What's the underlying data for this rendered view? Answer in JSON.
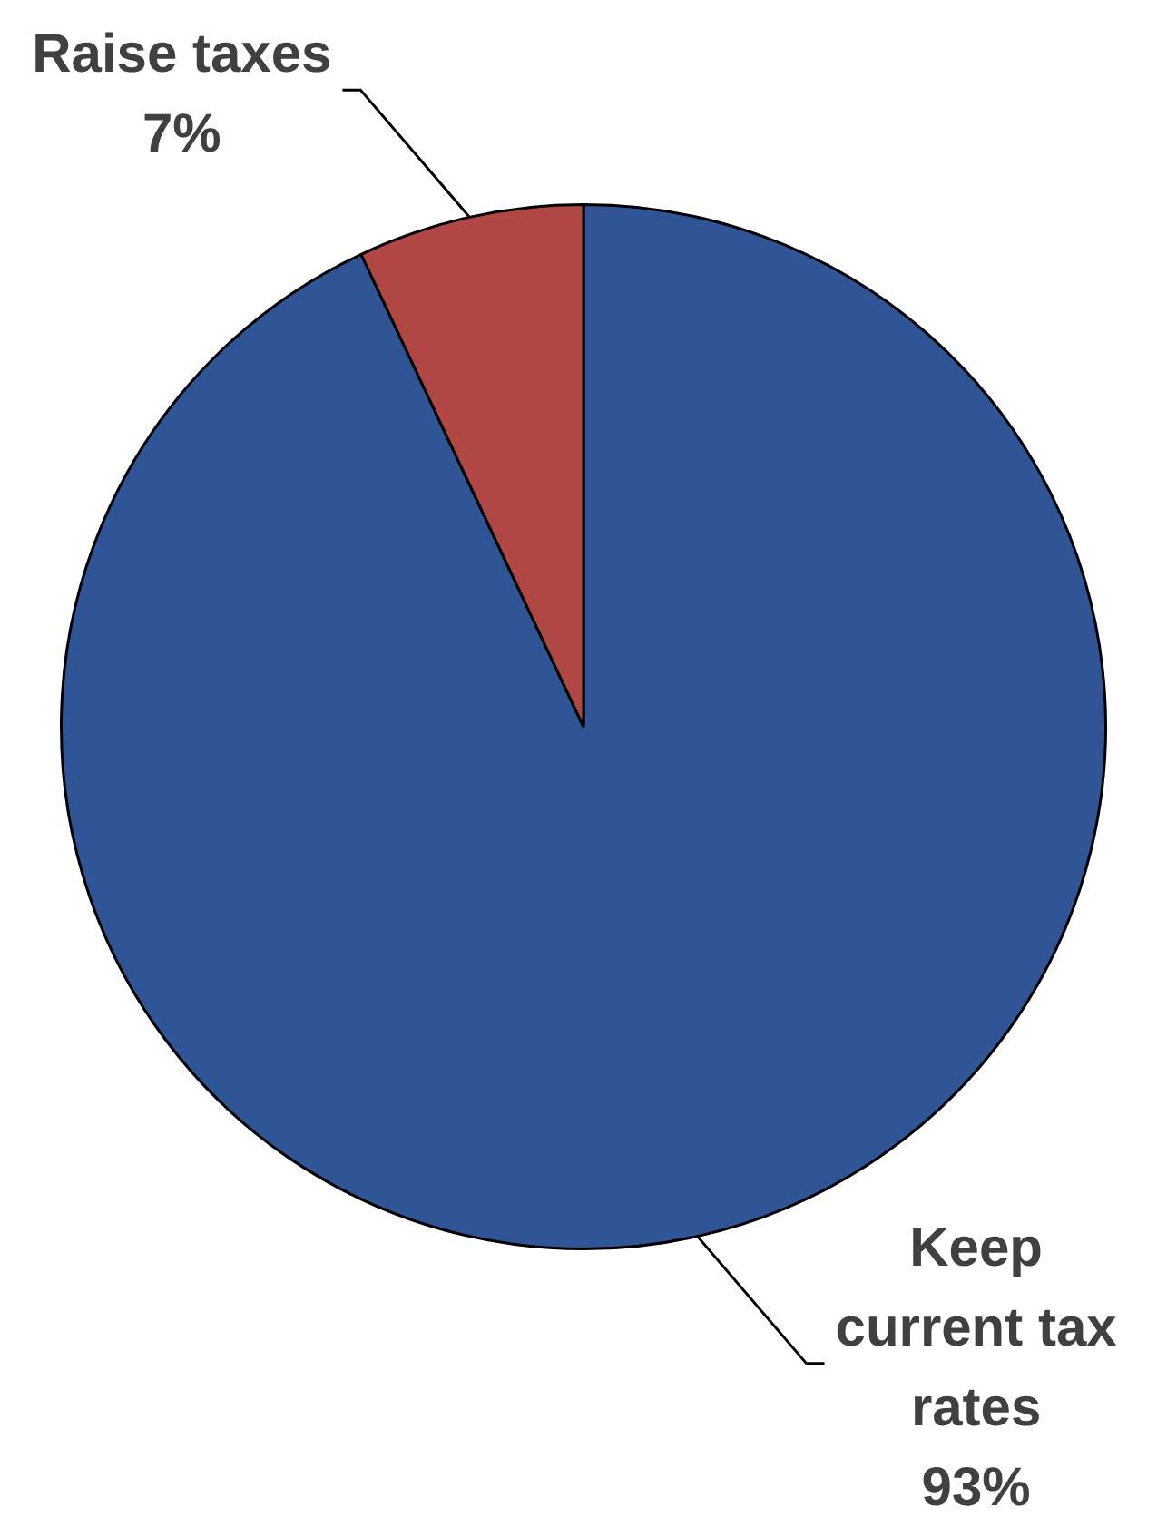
{
  "chart_data": {
    "type": "pie",
    "categories": [
      "Keep current tax rates",
      "Raise taxes"
    ],
    "values": [
      93,
      7
    ],
    "colors": [
      "#2f5597",
      "#b04744"
    ],
    "value_labels": [
      "93%",
      "7%"
    ]
  }
}
